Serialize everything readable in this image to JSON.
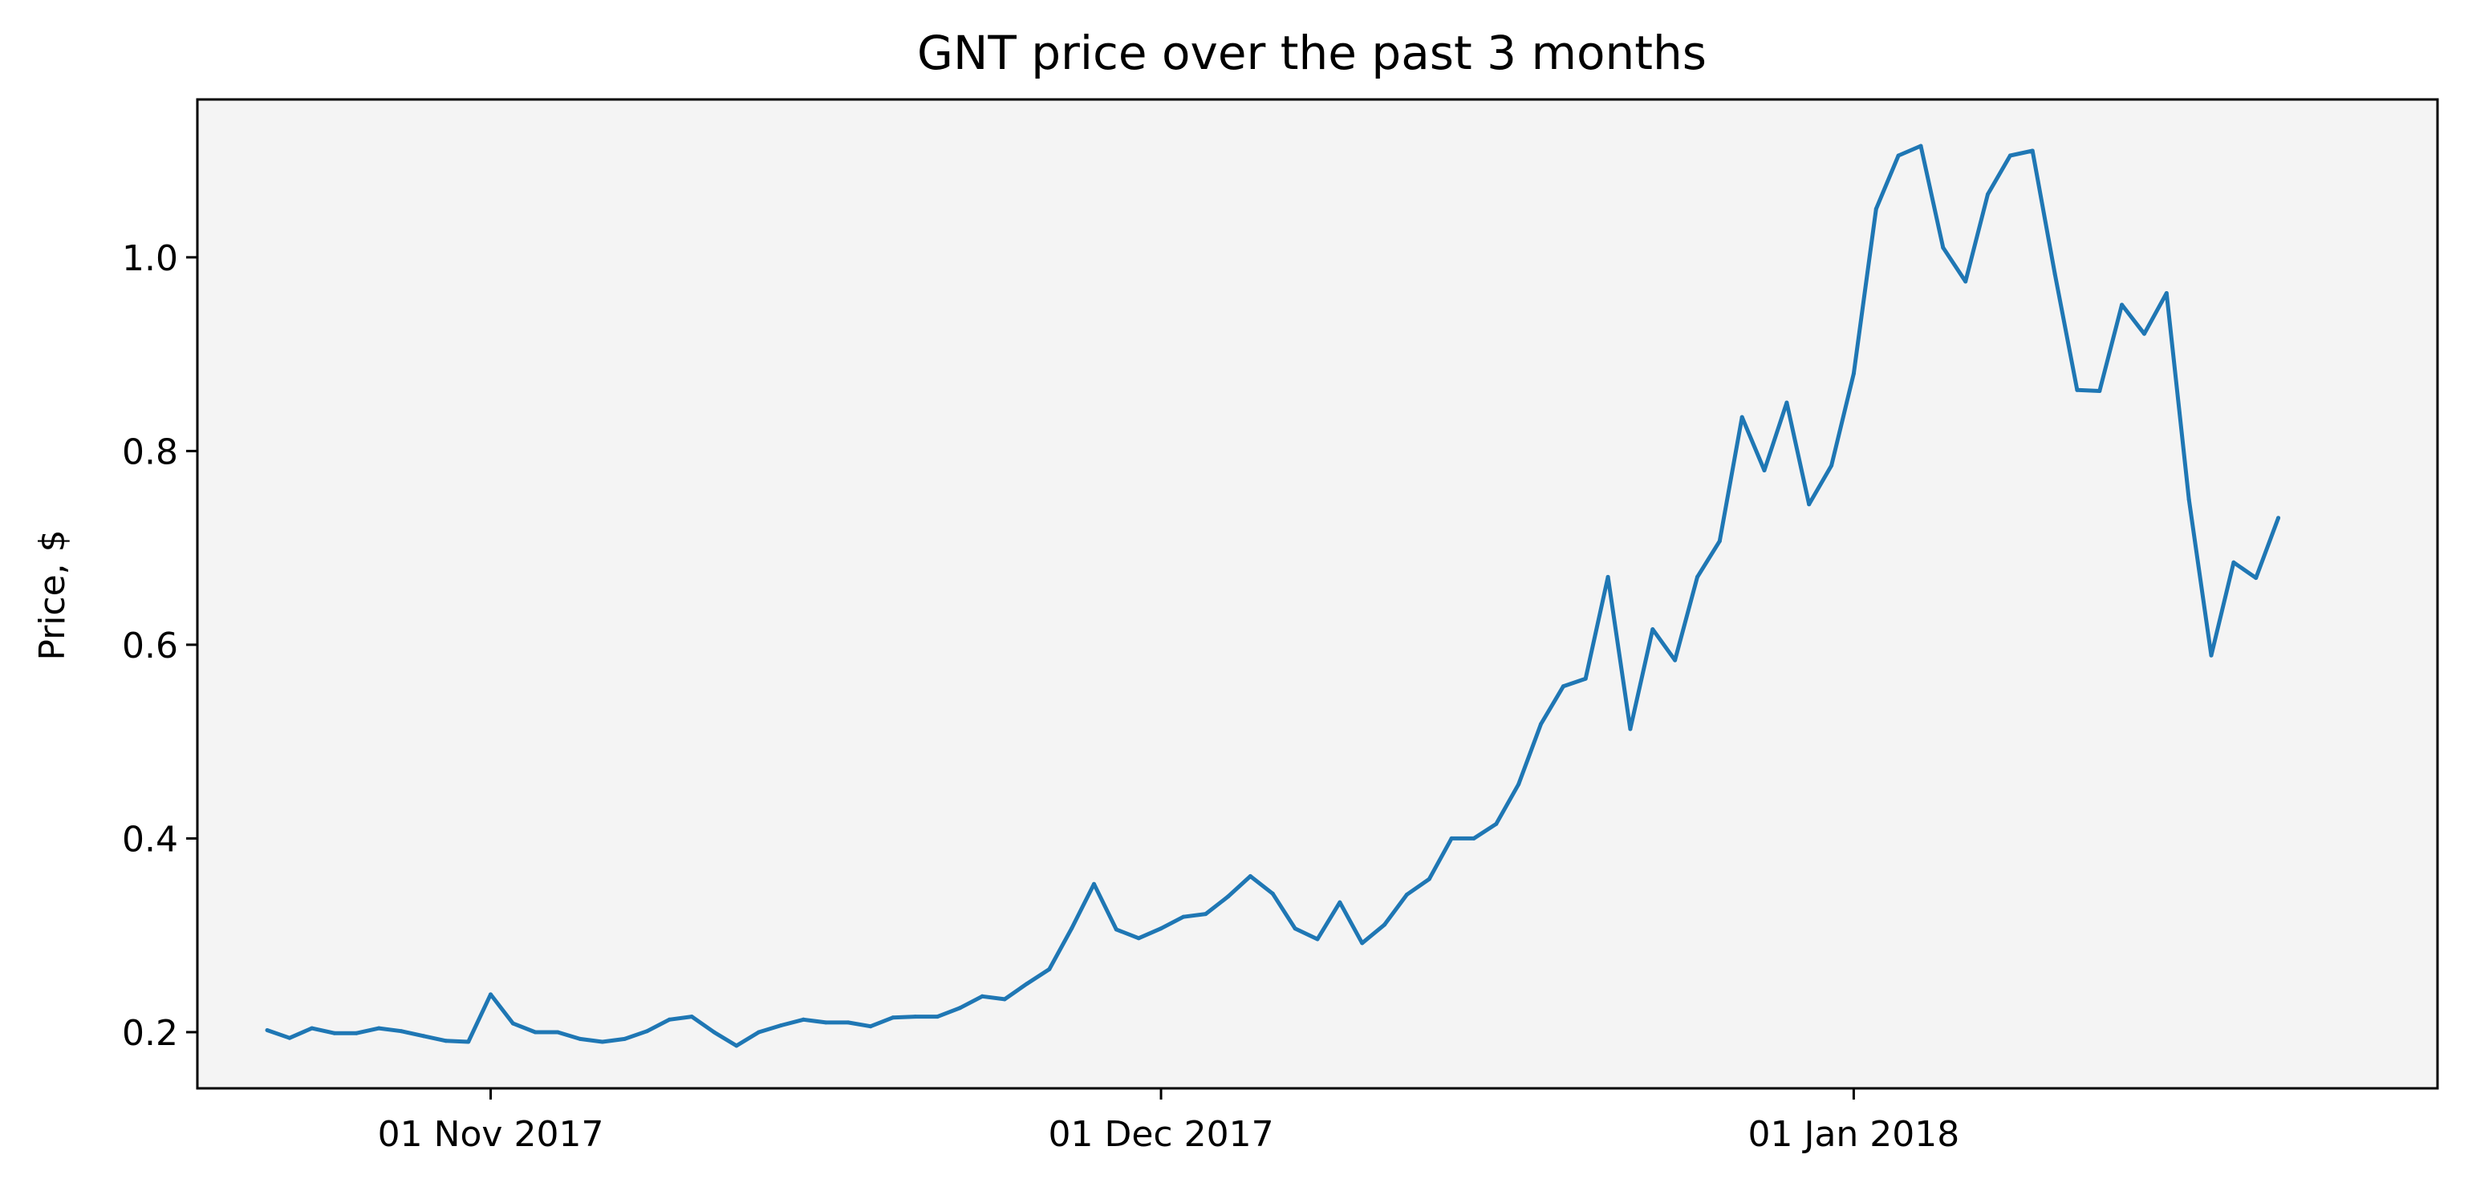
{
  "chart_data": {
    "type": "line",
    "title": "GNT price over the past 3 months",
    "xlabel": "",
    "ylabel": "Price, $",
    "xlim": [
      "2017-10-18T21:00",
      "2018-01-27T03:00"
    ],
    "ylim": [
      0.142,
      1.163
    ],
    "grid": false,
    "legend": "none",
    "background": "#f4f4f4",
    "x_ticks": [
      {
        "date": "2017-11-01",
        "label": "01 Nov 2017"
      },
      {
        "date": "2017-12-01",
        "label": "01 Dec 2017"
      },
      {
        "date": "2018-01-01",
        "label": "01 Jan 2018"
      }
    ],
    "y_ticks": [
      {
        "value": 0.2,
        "label": "0.2"
      },
      {
        "value": 0.4,
        "label": "0.4"
      },
      {
        "value": 0.6,
        "label": "0.6"
      },
      {
        "value": 0.8,
        "label": "0.8"
      },
      {
        "value": 1.0,
        "label": "1.0"
      }
    ],
    "series": [
      {
        "color": "#1f77b4",
        "points": [
          [
            "2017-10-22",
            0.202
          ],
          [
            "2017-10-23",
            0.194
          ],
          [
            "2017-10-24",
            0.204
          ],
          [
            "2017-10-25",
            0.199
          ],
          [
            "2017-10-26",
            0.199
          ],
          [
            "2017-10-27",
            0.204
          ],
          [
            "2017-10-28",
            0.201
          ],
          [
            "2017-10-29",
            0.196
          ],
          [
            "2017-10-30",
            0.191
          ],
          [
            "2017-10-31",
            0.19
          ],
          [
            "2017-11-01",
            0.239
          ],
          [
            "2017-11-02",
            0.209
          ],
          [
            "2017-11-03",
            0.2
          ],
          [
            "2017-11-04",
            0.2
          ],
          [
            "2017-11-05",
            0.193
          ],
          [
            "2017-11-06",
            0.19
          ],
          [
            "2017-11-07",
            0.193
          ],
          [
            "2017-11-08",
            0.201
          ],
          [
            "2017-11-09",
            0.213
          ],
          [
            "2017-11-10",
            0.216
          ],
          [
            "2017-11-11",
            0.2
          ],
          [
            "2017-11-12",
            0.186
          ],
          [
            "2017-11-13",
            0.2
          ],
          [
            "2017-11-14",
            0.207
          ],
          [
            "2017-11-15",
            0.213
          ],
          [
            "2017-11-16",
            0.21
          ],
          [
            "2017-11-17",
            0.21
          ],
          [
            "2017-11-18",
            0.206
          ],
          [
            "2017-11-19",
            0.215
          ],
          [
            "2017-11-20",
            0.216
          ],
          [
            "2017-11-21",
            0.216
          ],
          [
            "2017-11-22",
            0.225
          ],
          [
            "2017-11-23",
            0.237
          ],
          [
            "2017-11-24",
            0.234
          ],
          [
            "2017-11-25",
            0.25
          ],
          [
            "2017-11-26",
            0.265
          ],
          [
            "2017-11-27",
            0.307
          ],
          [
            "2017-11-28",
            0.353
          ],
          [
            "2017-11-29",
            0.306
          ],
          [
            "2017-11-30",
            0.297
          ],
          [
            "2017-12-01",
            0.307
          ],
          [
            "2017-12-02",
            0.319
          ],
          [
            "2017-12-03",
            0.322
          ],
          [
            "2017-12-04",
            0.34
          ],
          [
            "2017-12-05",
            0.361
          ],
          [
            "2017-12-06",
            0.343
          ],
          [
            "2017-12-07",
            0.307
          ],
          [
            "2017-12-08",
            0.296
          ],
          [
            "2017-12-09",
            0.334
          ],
          [
            "2017-12-10",
            0.292
          ],
          [
            "2017-12-11",
            0.311
          ],
          [
            "2017-12-12",
            0.342
          ],
          [
            "2017-12-13",
            0.358
          ],
          [
            "2017-12-14",
            0.4
          ],
          [
            "2017-12-15",
            0.4
          ],
          [
            "2017-12-16",
            0.415
          ],
          [
            "2017-12-17",
            0.456
          ],
          [
            "2017-12-18",
            0.518
          ],
          [
            "2017-12-19",
            0.557
          ],
          [
            "2017-12-20",
            0.565
          ],
          [
            "2017-12-21",
            0.67
          ],
          [
            "2017-12-22",
            0.513
          ],
          [
            "2017-12-23",
            0.616
          ],
          [
            "2017-12-24",
            0.584
          ],
          [
            "2017-12-25",
            0.67
          ],
          [
            "2017-12-26",
            0.707
          ],
          [
            "2017-12-27",
            0.835
          ],
          [
            "2017-12-28",
            0.78
          ],
          [
            "2017-12-29",
            0.85
          ],
          [
            "2017-12-30",
            0.745
          ],
          [
            "2017-12-31",
            0.785
          ],
          [
            "2018-01-01",
            0.88
          ],
          [
            "2018-01-02",
            1.05
          ],
          [
            "2018-01-03",
            1.105
          ],
          [
            "2018-01-04",
            1.115
          ],
          [
            "2018-01-05",
            1.01
          ],
          [
            "2018-01-06",
            0.975
          ],
          [
            "2018-01-07",
            1.065
          ],
          [
            "2018-01-08",
            1.105
          ],
          [
            "2018-01-09",
            1.11
          ],
          [
            "2018-01-10",
            0.983
          ],
          [
            "2018-01-11",
            0.863
          ],
          [
            "2018-01-12",
            0.862
          ],
          [
            "2018-01-13",
            0.951
          ],
          [
            "2018-01-14",
            0.921
          ],
          [
            "2018-01-15",
            0.963
          ],
          [
            "2018-01-16",
            0.75
          ],
          [
            "2018-01-17",
            0.589
          ],
          [
            "2018-01-18",
            0.685
          ],
          [
            "2018-01-19",
            0.669
          ],
          [
            "2018-01-20",
            0.731
          ]
        ]
      }
    ]
  }
}
